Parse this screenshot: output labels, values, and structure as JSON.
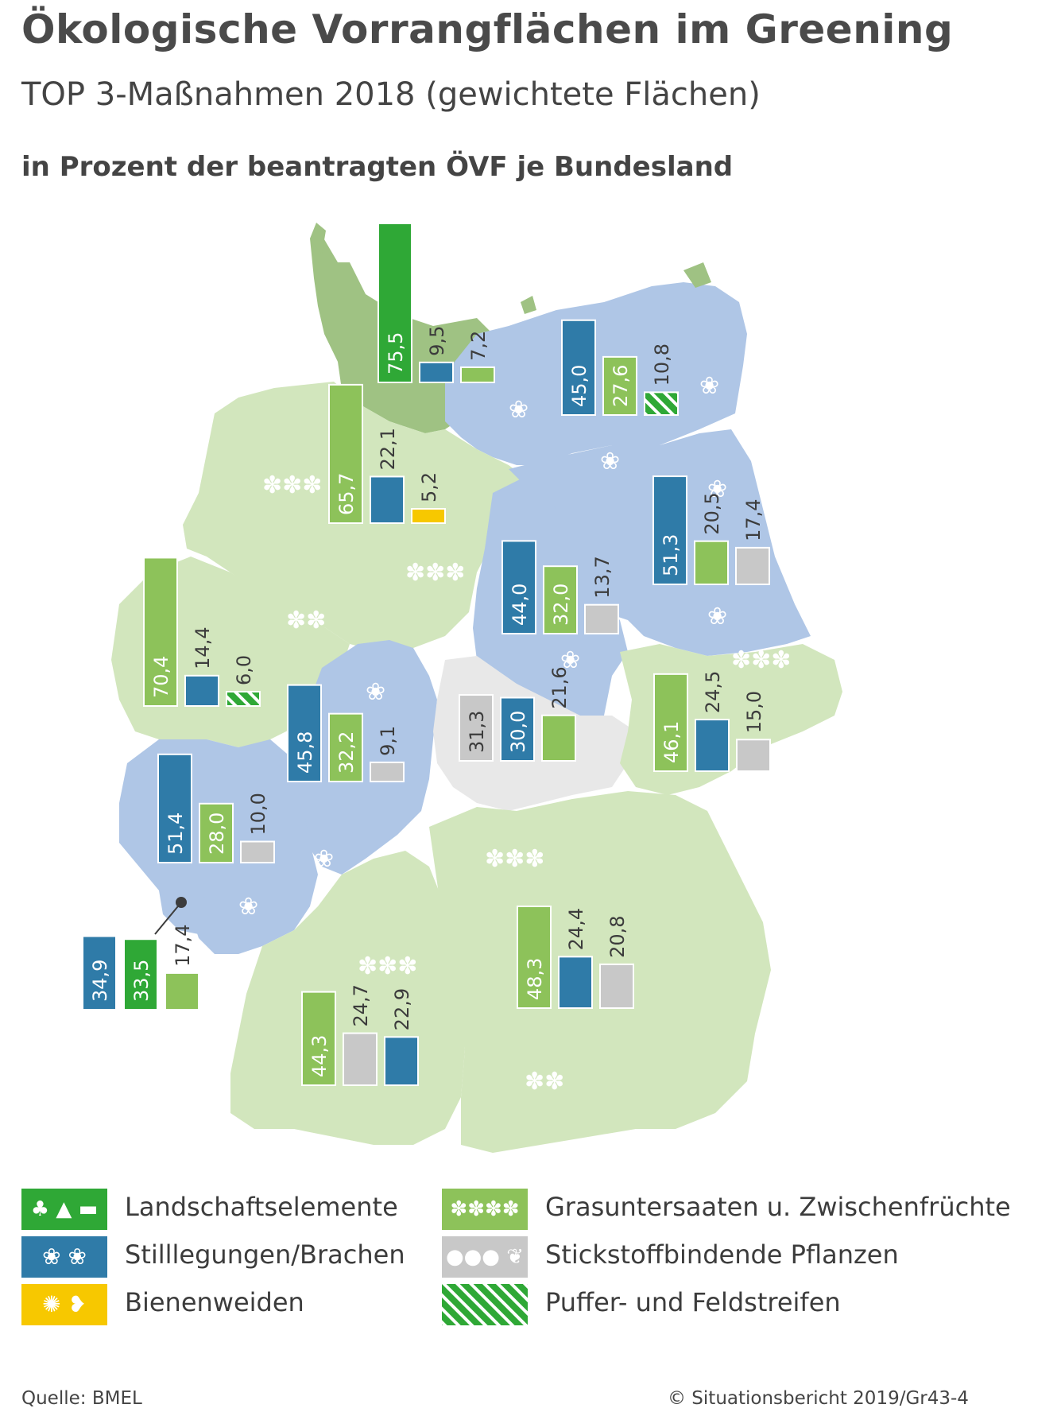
{
  "header": {
    "title": "Ökologische Vorrangflächen im Greening",
    "subtitle": "TOP 3-Maßnahmen 2018 (gewichtete Flächen)",
    "unit_label": "in Prozent der beantragten ÖVF je Bundesland"
  },
  "colors": {
    "landschaft": "#2fa836",
    "stilllegung": "#2f7ba8",
    "bienen": "#f7c800",
    "gras": "#8dc25a",
    "stickstoff": "#c8c8c8",
    "puffer": "#2fa836",
    "land_green": "#d2e6bd",
    "land_blue": "#afc6e6",
    "land_grey": "#e8e8e8",
    "land_darkgreen": "#9fc283"
  },
  "chart_data": {
    "type": "bar",
    "scale_note": "Prozent der beantragten ÖVF je Bundesland",
    "states": [
      {
        "bars": [
          {
            "cat": "landschaft",
            "value": 75.5,
            "label": "75,5"
          },
          {
            "cat": "stilllegung",
            "value": 9.5,
            "label": "9,5"
          },
          {
            "cat": "gras",
            "value": 7.2,
            "label": "7,2"
          }
        ]
      },
      {
        "bars": [
          {
            "cat": "stilllegung",
            "value": 45.0,
            "label": "45,0"
          },
          {
            "cat": "gras",
            "value": 27.6,
            "label": "27,6"
          },
          {
            "cat": "puffer",
            "value": 10.8,
            "label": "10,8"
          }
        ]
      },
      {
        "bars": [
          {
            "cat": "gras",
            "value": 65.7,
            "label": "65,7"
          },
          {
            "cat": "stilllegung",
            "value": 22.1,
            "label": "22,1"
          },
          {
            "cat": "bienen",
            "value": 5.2,
            "label": "5,2"
          }
        ]
      },
      {
        "bars": [
          {
            "cat": "stilllegung",
            "value": 51.3,
            "label": "51,3"
          },
          {
            "cat": "gras",
            "value": 20.5,
            "label": "20,5"
          },
          {
            "cat": "stickstoff",
            "value": 17.4,
            "label": "17,4"
          }
        ]
      },
      {
        "bars": [
          {
            "cat": "stilllegung",
            "value": 44.0,
            "label": "44,0"
          },
          {
            "cat": "gras",
            "value": 32.0,
            "label": "32,0"
          },
          {
            "cat": "stickstoff",
            "value": 13.7,
            "label": "13,7"
          }
        ]
      },
      {
        "bars": [
          {
            "cat": "gras",
            "value": 70.4,
            "label": "70,4"
          },
          {
            "cat": "stilllegung",
            "value": 14.4,
            "label": "14,4"
          },
          {
            "cat": "puffer",
            "value": 6.0,
            "label": "6,0"
          }
        ]
      },
      {
        "bars": [
          {
            "cat": "stickstoff",
            "value": 31.3,
            "label": "31,3"
          },
          {
            "cat": "stilllegung",
            "value": 30.0,
            "label": "30,0"
          },
          {
            "cat": "gras",
            "value": 21.6,
            "label": "21,6"
          }
        ]
      },
      {
        "bars": [
          {
            "cat": "gras",
            "value": 46.1,
            "label": "46,1"
          },
          {
            "cat": "stilllegung",
            "value": 24.5,
            "label": "24,5"
          },
          {
            "cat": "stickstoff",
            "value": 15.0,
            "label": "15,0"
          }
        ]
      },
      {
        "bars": [
          {
            "cat": "stilllegung",
            "value": 45.8,
            "label": "45,8"
          },
          {
            "cat": "gras",
            "value": 32.2,
            "label": "32,2"
          },
          {
            "cat": "stickstoff",
            "value": 9.1,
            "label": "9,1"
          }
        ]
      },
      {
        "bars": [
          {
            "cat": "stilllegung",
            "value": 51.4,
            "label": "51,4"
          },
          {
            "cat": "gras",
            "value": 28.0,
            "label": "28,0"
          },
          {
            "cat": "stickstoff",
            "value": 10.0,
            "label": "10,0"
          }
        ]
      },
      {
        "bars": [
          {
            "cat": "stilllegung",
            "value": 34.9,
            "label": "34,9"
          },
          {
            "cat": "landschaft",
            "value": 33.5,
            "label": "33,5"
          },
          {
            "cat": "gras",
            "value": 17.4,
            "label": "17,4"
          }
        ]
      },
      {
        "bars": [
          {
            "cat": "gras",
            "value": 48.3,
            "label": "48,3"
          },
          {
            "cat": "stilllegung",
            "value": 24.4,
            "label": "24,4"
          },
          {
            "cat": "stickstoff",
            "value": 20.8,
            "label": "20,8"
          }
        ]
      },
      {
        "bars": [
          {
            "cat": "gras",
            "value": 44.3,
            "label": "44,3"
          },
          {
            "cat": "stickstoff",
            "value": 24.7,
            "label": "24,7"
          },
          {
            "cat": "stilllegung",
            "value": 22.9,
            "label": "22,9"
          }
        ]
      }
    ]
  },
  "legend": [
    {
      "key": "landschaft",
      "label": "Landschaftselemente",
      "icon": "tree-icon"
    },
    {
      "key": "stilllegung",
      "label": "Stilllegungen/Brachen",
      "icon": "flower-icon"
    },
    {
      "key": "bienen",
      "label": "Bienenweiden",
      "icon": "bee-icon"
    },
    {
      "key": "gras",
      "label": "Grasuntersaaten u. Zwischenfrüchte",
      "icon": "plant-icon"
    },
    {
      "key": "stickstoff",
      "label": "Stickstoffbindende Pflanzen",
      "icon": "pea-icon"
    },
    {
      "key": "puffer",
      "label": "Puffer- und Feldstreifen",
      "icon": "stripes-icon"
    }
  ],
  "footer": {
    "source": "Quelle: BMEL",
    "copyright": "© Situationsbericht 2019/Gr43-4"
  }
}
